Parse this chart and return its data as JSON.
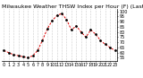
{
  "title": "Milwaukee Weather THSW Index per Hour (F) (Last 24 Hours)",
  "hours": [
    0,
    1,
    2,
    3,
    4,
    5,
    6,
    7,
    8,
    9,
    10,
    11,
    12,
    13,
    14,
    15,
    16,
    17,
    18,
    19,
    20,
    21,
    22,
    23
  ],
  "values": [
    62,
    60,
    58,
    57,
    56,
    55,
    57,
    62,
    72,
    83,
    91,
    96,
    98,
    92,
    82,
    86,
    80,
    75,
    82,
    78,
    72,
    68,
    65,
    62
  ],
  "line_color": "#dd0000",
  "dot_color": "#000000",
  "background_color": "#ffffff",
  "grid_color": "#888888",
  "ylim": [
    52,
    102
  ],
  "ytick_values": [
    55,
    60,
    65,
    70,
    75,
    80,
    85,
    90,
    95,
    100
  ],
  "title_fontsize": 4.5,
  "tick_fontsize": 3.5,
  "figwidth": 1.6,
  "figheight": 0.87,
  "dpi": 100
}
